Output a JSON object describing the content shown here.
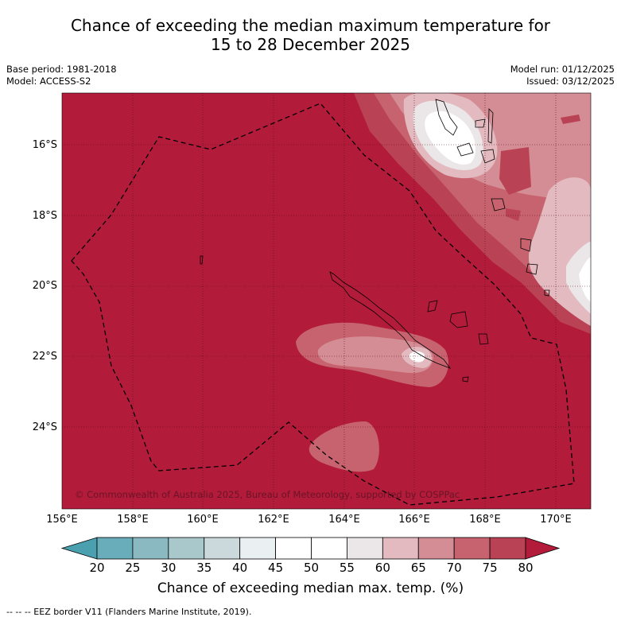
{
  "header": {
    "title_line1": "Chance of exceeding the median maximum temperature for",
    "title_line2": "15 to 28 December 2025",
    "base_period": "Base period: 1981-2018",
    "model": "Model: ACCESS-S2",
    "model_run": "Model run: 01/12/2025",
    "issued": "Issued: 03/12/2025"
  },
  "map": {
    "lat_labels": [
      "16°S",
      "18°S",
      "20°S",
      "22°S",
      "24°S"
    ],
    "lon_labels": [
      "156°E",
      "158°E",
      "160°E",
      "162°E",
      "164°E",
      "166°E",
      "168°E",
      "170°E"
    ],
    "copyright": "© Commonwealth of Australia 2025, Bureau of Meteorology, supported by COSPPac",
    "base_color": "#b31b3a"
  },
  "colorbar": {
    "ticks": [
      "20",
      "25",
      "30",
      "35",
      "40",
      "45",
      "50",
      "55",
      "60",
      "65",
      "70",
      "75",
      "80"
    ],
    "colors": [
      "#4ba0b0",
      "#68adb9",
      "#8ab9c2",
      "#a9c8cc",
      "#cbd9dc",
      "#eaf0f2",
      "#ffffff",
      "#ffffff",
      "#ebe6e7",
      "#e3bac0",
      "#d58d95",
      "#c6636e",
      "#b94355",
      "#b31b3a"
    ],
    "label": "Chance of exceeding median max. temp. (%)"
  },
  "footnote": "--  --  -- EEZ border V11 (Flanders Marine Institute, 2019)."
}
